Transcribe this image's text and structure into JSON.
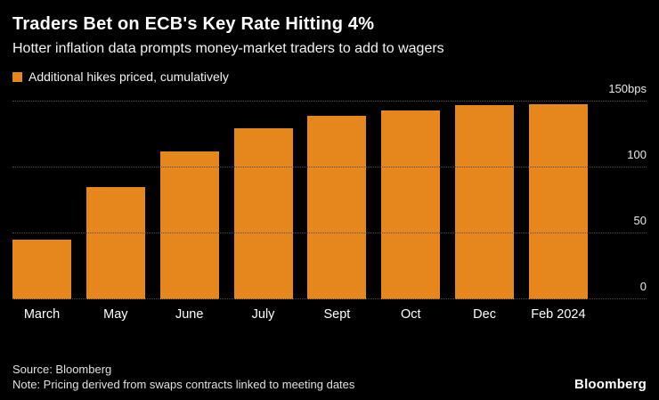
{
  "header": {
    "title": "Traders Bet on ECB's Key Rate Hitting 4%",
    "subtitle": "Hotter inflation data prompts money-market traders to add to wagers"
  },
  "legend": {
    "label": "Additional hikes priced, cumulatively"
  },
  "chart_data": {
    "type": "bar",
    "title": "Traders Bet on ECB's Key Rate Hitting 4%",
    "categories": [
      "March",
      "May",
      "June",
      "July",
      "Sept",
      "Oct",
      "Dec",
      "Feb 2024"
    ],
    "values": [
      45,
      85,
      112,
      130,
      139,
      143,
      147,
      148
    ],
    "unit": "bps",
    "ylim": [
      0,
      150
    ],
    "yticks": [
      {
        "value": 150,
        "label": "150bps"
      },
      {
        "value": 100,
        "label": "100"
      },
      {
        "value": 50,
        "label": "50"
      },
      {
        "value": 0,
        "label": "0"
      }
    ],
    "bar_color": "#E6871E",
    "background_color": "#000000",
    "grid": "dotted-horizontal",
    "legend_position": "top-left",
    "y_axis_side": "right"
  },
  "footer": {
    "source": "Source: Bloomberg",
    "note": "Note: Pricing derived from swaps contracts linked to meeting dates",
    "brand": "Bloomberg"
  }
}
